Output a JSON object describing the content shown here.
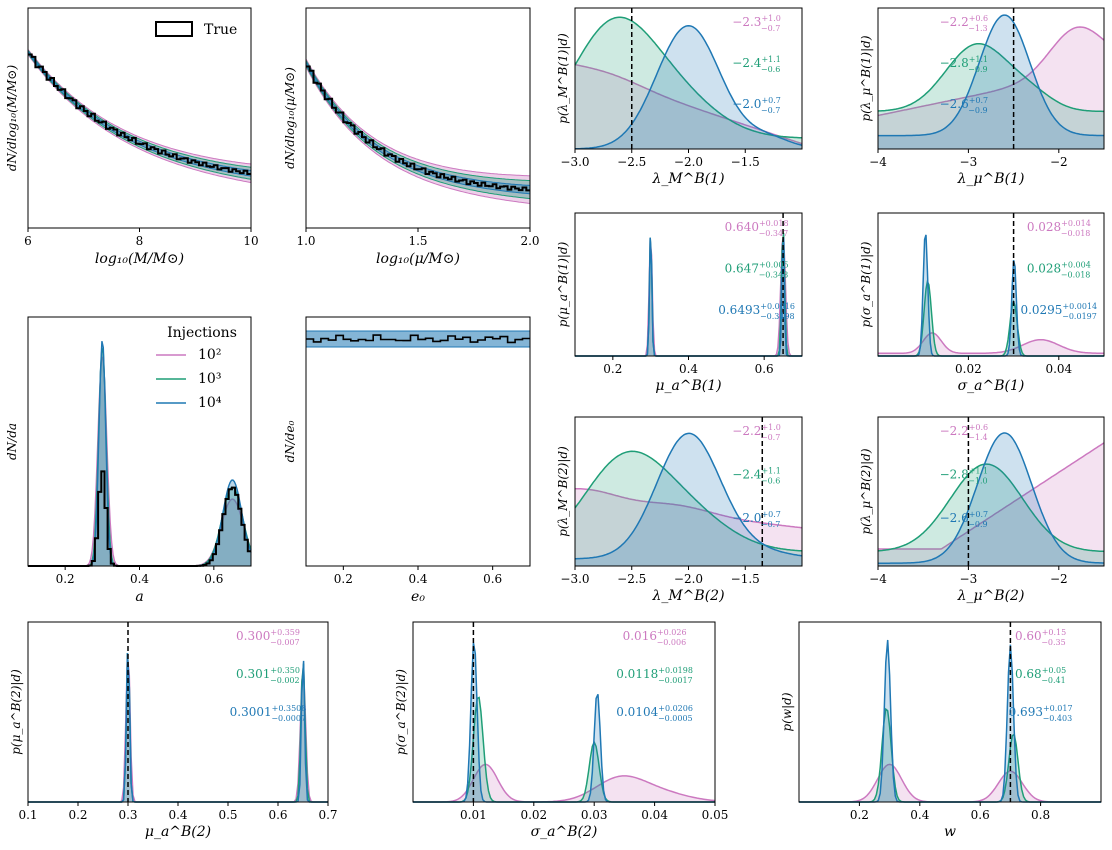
{
  "colors": {
    "pink": "#cc79c0",
    "green": "#1f9e77",
    "blue": "#1f78b4",
    "truth": "#000000"
  },
  "legend_injections": {
    "title": "Injections",
    "entries": [
      "10²",
      "10³",
      "10⁴"
    ]
  },
  "legend_true": "True",
  "chart_data": [
    {
      "id": "mass",
      "type": "line",
      "xlabel": "log₁₀(M/M⊙)",
      "ylabel": "dN/dlog₁₀(M/M⊙)",
      "xlim": [
        6,
        10
      ],
      "xticks": [
        "6",
        "8",
        "10"
      ]
    },
    {
      "id": "mu",
      "type": "line",
      "xlabel": "log₁₀(μ/M⊙)",
      "ylabel": "dN/dlog₁₀(μ/M⊙)",
      "xlim": [
        1.0,
        2.0
      ],
      "xticks": [
        "1.0",
        "1.5",
        "2.0"
      ]
    },
    {
      "id": "lamM1",
      "type": "area",
      "xlabel": "λ_M^B(1)",
      "ylabel": "p(λ_M^B(1)|d)",
      "xlim": [
        -3.0,
        -1.0
      ],
      "xticks": [
        "−3.0",
        "−2.5",
        "−2.0",
        "−1.5"
      ],
      "truth": -2.5,
      "annotations": [
        {
          "series": "10²",
          "median": "−2.3",
          "plus": "+1.0",
          "minus": "−0.7"
        },
        {
          "series": "10³",
          "median": "−2.4",
          "plus": "+1.1",
          "minus": "−0.6"
        },
        {
          "series": "10⁴",
          "median": "−2.0",
          "plus": "+0.7",
          "minus": "−0.7"
        }
      ]
    },
    {
      "id": "lamMu1",
      "type": "area",
      "xlabel": "λ_μ^B(1)",
      "ylabel": "p(λ_μ^B(1)|d)",
      "xlim": [
        -4,
        -1.5
      ],
      "xticks": [
        "−4",
        "−3",
        "−2"
      ],
      "truth": -2.5,
      "annotations": [
        {
          "series": "10²",
          "median": "−2.2",
          "plus": "+0.6",
          "minus": "−1.3"
        },
        {
          "series": "10³",
          "median": "−2.8",
          "plus": "+1.1",
          "minus": "−0.9"
        },
        {
          "series": "10⁴",
          "median": "−2.6",
          "plus": "+0.7",
          "minus": "−0.9"
        }
      ]
    },
    {
      "id": "muA1",
      "type": "area",
      "xlabel": "μ_a^B(1)",
      "ylabel": "p(μ_a^B(1)|d)",
      "xlim": [
        0.1,
        0.7
      ],
      "xticks": [
        "0.2",
        "0.4",
        "0.6"
      ],
      "truth": 0.65,
      "annotations": [
        {
          "series": "10²",
          "median": "0.640",
          "plus": "+0.018",
          "minus": "−0.347"
        },
        {
          "series": "10³",
          "median": "0.647",
          "plus": "+0.005",
          "minus": "−0.348"
        },
        {
          "series": "10⁴",
          "median": "0.6493",
          "plus": "+0.0016",
          "minus": "−0.3498"
        }
      ]
    },
    {
      "id": "sigA1",
      "type": "area",
      "xlabel": "σ_a^B(1)",
      "ylabel": "p(σ_a^B(1)|d)",
      "xlim": [
        0.0,
        0.05
      ],
      "xticks": [
        "0.02",
        "0.04"
      ],
      "truth": 0.03,
      "annotations": [
        {
          "series": "10²",
          "median": "0.028",
          "plus": "+0.014",
          "minus": "−0.018"
        },
        {
          "series": "10³",
          "median": "0.028",
          "plus": "+0.004",
          "minus": "−0.018"
        },
        {
          "series": "10⁴",
          "median": "0.0295",
          "plus": "+0.0014",
          "minus": "−0.0197"
        }
      ]
    },
    {
      "id": "spin",
      "type": "line",
      "xlabel": "a",
      "ylabel": "dN/da",
      "xlim": [
        0.1,
        0.7
      ],
      "xticks": [
        "0.2",
        "0.4",
        "0.6"
      ]
    },
    {
      "id": "ecc",
      "type": "line",
      "xlabel": "e₀",
      "ylabel": "dN/de₀",
      "xlim": [
        0.1,
        0.7
      ],
      "xticks": [
        "0.2",
        "0.4",
        "0.6"
      ]
    },
    {
      "id": "lamM2",
      "type": "area",
      "xlabel": "λ_M^B(2)",
      "ylabel": "p(λ_M^B(2)|d)",
      "xlim": [
        -3.0,
        -1.0
      ],
      "xticks": [
        "−3.0",
        "−2.5",
        "−2.0",
        "−1.5"
      ],
      "truth": -1.35,
      "annotations": [
        {
          "series": "10²",
          "median": "−2.2",
          "plus": "+1.0",
          "minus": "−0.7"
        },
        {
          "series": "10³",
          "median": "−2.4",
          "plus": "+1.1",
          "minus": "−0.6"
        },
        {
          "series": "10⁴",
          "median": "−2.0",
          "plus": "+0.7",
          "minus": "−0.7"
        }
      ]
    },
    {
      "id": "lamMu2",
      "type": "area",
      "xlabel": "λ_μ^B(2)",
      "ylabel": "p(λ_μ^B(2)|d)",
      "xlim": [
        -4,
        -1.5
      ],
      "xticks": [
        "−4",
        "−3",
        "−2"
      ],
      "truth": -3.0,
      "annotations": [
        {
          "series": "10²",
          "median": "−2.2",
          "plus": "+0.6",
          "minus": "−1.4"
        },
        {
          "series": "10³",
          "median": "−2.8",
          "plus": "+1.1",
          "minus": "−1.0"
        },
        {
          "series": "10⁴",
          "median": "−2.6",
          "plus": "+0.7",
          "minus": "−0.9"
        }
      ]
    },
    {
      "id": "muA2",
      "type": "area",
      "xlabel": "μ_a^B(2)",
      "ylabel": "p(μ_a^B(2)|d)",
      "xlim": [
        0.1,
        0.7
      ],
      "xticks": [
        "0.1",
        "0.2",
        "0.3",
        "0.4",
        "0.5",
        "0.6",
        "0.7"
      ],
      "truth": 0.3,
      "annotations": [
        {
          "series": "10²",
          "median": "0.300",
          "plus": "+0.359",
          "minus": "−0.007"
        },
        {
          "series": "10³",
          "median": "0.301",
          "plus": "+0.350",
          "minus": "−0.002"
        },
        {
          "series": "10⁴",
          "median": "0.3001",
          "plus": "+0.3508",
          "minus": "−0.0007"
        }
      ]
    },
    {
      "id": "sigA2",
      "type": "area",
      "xlabel": "σ_a^B(2)",
      "ylabel": "p(σ_a^B(2)|d)",
      "xlim": [
        0.0,
        0.05
      ],
      "xticks": [
        "0.01",
        "0.02",
        "0.03",
        "0.04",
        "0.05"
      ],
      "truth": 0.01,
      "annotations": [
        {
          "series": "10²",
          "median": "0.016",
          "plus": "+0.026",
          "minus": "−0.006"
        },
        {
          "series": "10³",
          "median": "0.0118",
          "plus": "+0.0198",
          "minus": "−0.0017"
        },
        {
          "series": "10⁴",
          "median": "0.0104",
          "plus": "+0.0206",
          "minus": "−0.0005"
        }
      ]
    },
    {
      "id": "w",
      "type": "area",
      "xlabel": "w",
      "ylabel": "p(w|d)",
      "xlim": [
        0.0,
        1.0
      ],
      "xticks": [
        "0.2",
        "0.4",
        "0.6",
        "0.8"
      ],
      "truth": 0.7,
      "annotations": [
        {
          "series": "10²",
          "median": "0.60",
          "plus": "+0.15",
          "minus": "−0.35"
        },
        {
          "series": "10³",
          "median": "0.68",
          "plus": "+0.05",
          "minus": "−0.41"
        },
        {
          "series": "10⁴",
          "median": "0.693",
          "plus": "+0.017",
          "minus": "−0.403"
        }
      ]
    }
  ]
}
